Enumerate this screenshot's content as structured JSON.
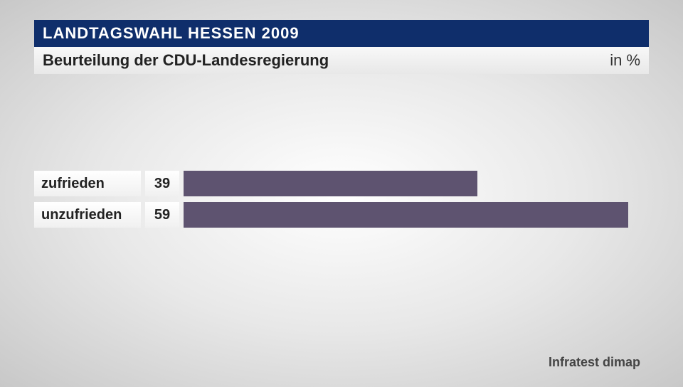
{
  "header": {
    "title": "LANDTAGSWAHL HESSEN 2009",
    "subtitle": "Beurteilung der CDU-Landesregierung",
    "unit": "in %",
    "title_bg_color": "#0f2e6b",
    "title_text_color": "#ffffff",
    "subtitle_text_color": "#222222"
  },
  "chart": {
    "type": "bar",
    "orientation": "horizontal",
    "max_value": 100,
    "bar_color": "#5e5370",
    "label_bg_gradient_from": "#ffffff",
    "label_bg_gradient_to": "#f0f0f0",
    "label_fontsize": 20,
    "value_fontsize": 20,
    "bars": [
      {
        "label": "zufrieden",
        "value": 39,
        "width_pct": "63.2%"
      },
      {
        "label": "unzufrieden",
        "value": 59,
        "width_pct": "95.6%"
      }
    ]
  },
  "source": "Infratest dimap",
  "background": {
    "gradient_center": "#ffffff",
    "gradient_mid": "#e8e8e8",
    "gradient_edge": "#c8c8c8"
  }
}
